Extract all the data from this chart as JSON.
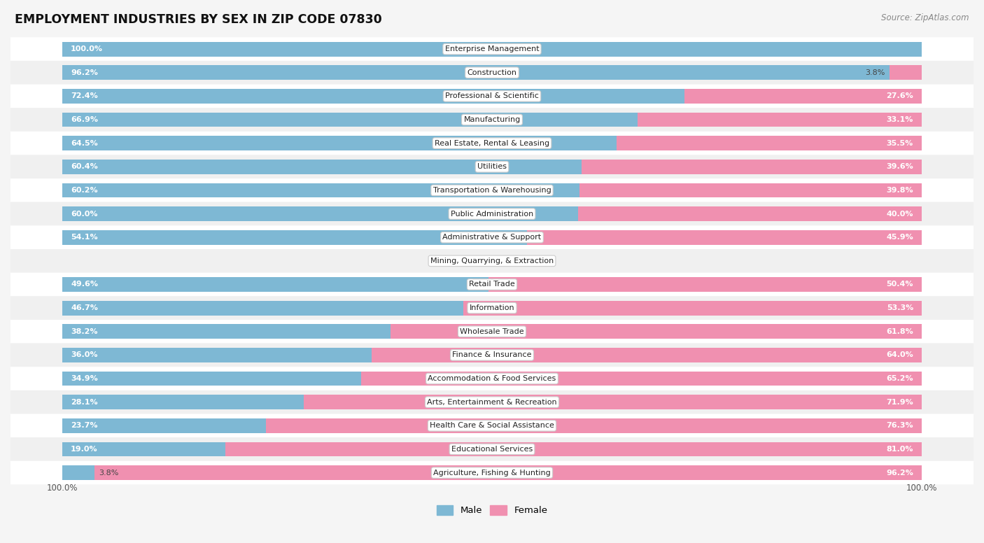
{
  "title": "EMPLOYMENT INDUSTRIES BY SEX IN ZIP CODE 07830",
  "source": "Source: ZipAtlas.com",
  "male_color": "#7eb8d4",
  "female_color": "#f090b0",
  "row_color_odd": "#f0f0f0",
  "row_color_even": "#ffffff",
  "label_bg": "#ffffff",
  "background_color": "#f5f5f5",
  "categories": [
    "Enterprise Management",
    "Construction",
    "Professional & Scientific",
    "Manufacturing",
    "Real Estate, Rental & Leasing",
    "Utilities",
    "Transportation & Warehousing",
    "Public Administration",
    "Administrative & Support",
    "Mining, Quarrying, & Extraction",
    "Retail Trade",
    "Information",
    "Wholesale Trade",
    "Finance & Insurance",
    "Accommodation & Food Services",
    "Arts, Entertainment & Recreation",
    "Health Care & Social Assistance",
    "Educational Services",
    "Agriculture, Fishing & Hunting"
  ],
  "male_pct": [
    100.0,
    96.2,
    72.4,
    66.9,
    64.5,
    60.4,
    60.2,
    60.0,
    54.1,
    0.0,
    49.6,
    46.7,
    38.2,
    36.0,
    34.9,
    28.1,
    23.7,
    19.0,
    3.8
  ],
  "female_pct": [
    0.0,
    3.8,
    27.6,
    33.1,
    35.5,
    39.6,
    39.8,
    40.0,
    45.9,
    0.0,
    50.4,
    53.3,
    61.8,
    64.0,
    65.2,
    71.9,
    76.3,
    81.0,
    96.2
  ]
}
